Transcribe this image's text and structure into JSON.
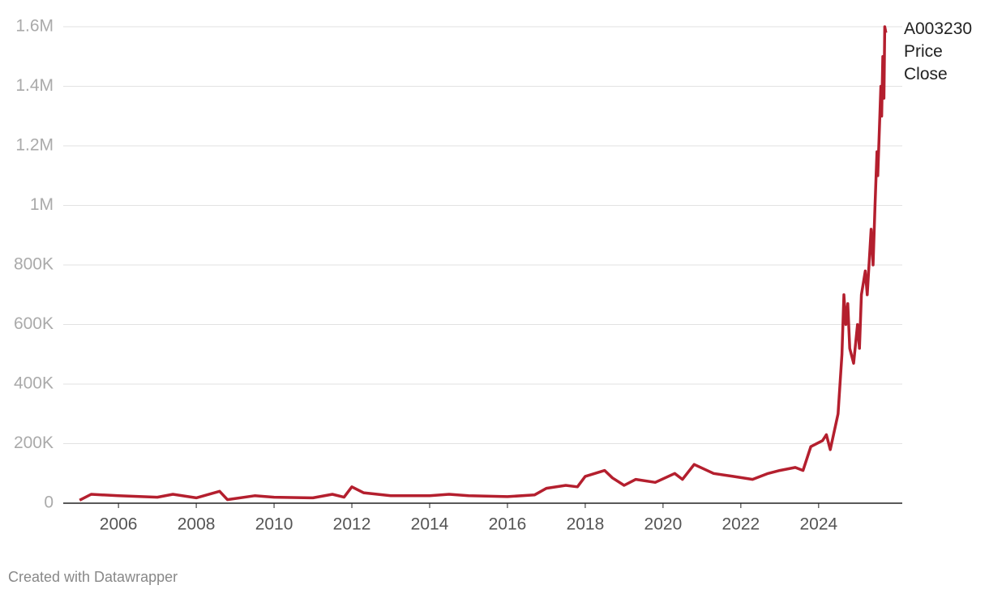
{
  "chart_data": {
    "type": "line",
    "credit": "Created with Datawrapper",
    "x": [
      2005.0,
      2005.3,
      2006.0,
      2007.0,
      2007.4,
      2008.0,
      2008.6,
      2008.8,
      2009.5,
      2010.0,
      2011.0,
      2011.5,
      2011.8,
      2012.0,
      2012.3,
      2013.0,
      2014.0,
      2014.5,
      2015.0,
      2016.0,
      2016.7,
      2017.0,
      2017.5,
      2017.8,
      2018.0,
      2018.5,
      2018.7,
      2019.0,
      2019.3,
      2019.8,
      2020.3,
      2020.5,
      2020.8,
      2021.3,
      2021.8,
      2022.3,
      2022.7,
      2023.0,
      2023.4,
      2023.6,
      2023.8,
      2024.1,
      2024.2,
      2024.3,
      2024.5,
      2024.6,
      2024.65,
      2024.7,
      2024.75,
      2024.8,
      2024.9,
      2025.0,
      2025.05,
      2025.1,
      2025.2,
      2025.25,
      2025.35,
      2025.4,
      2025.45,
      2025.5,
      2025.52,
      2025.6,
      2025.62,
      2025.65,
      2025.68,
      2025.7,
      2025.73
    ],
    "series": [
      {
        "name": "A003230 Price Close",
        "color": "#b41f2e",
        "values": [
          10000,
          30000,
          25000,
          20000,
          30000,
          18000,
          40000,
          12000,
          25000,
          20000,
          18000,
          30000,
          20000,
          55000,
          35000,
          25000,
          25000,
          30000,
          25000,
          22000,
          28000,
          50000,
          60000,
          55000,
          90000,
          110000,
          85000,
          60000,
          80000,
          70000,
          100000,
          80000,
          130000,
          100000,
          90000,
          80000,
          100000,
          110000,
          120000,
          110000,
          190000,
          210000,
          230000,
          180000,
          300000,
          500000,
          700000,
          600000,
          670000,
          520000,
          470000,
          600000,
          520000,
          700000,
          780000,
          700000,
          920000,
          800000,
          1000000,
          1180000,
          1100000,
          1400000,
          1300000,
          1500000,
          1360000,
          1600000,
          1580000
        ]
      }
    ],
    "xlim": [
      2004.58,
      2026.15
    ],
    "xticks": [
      2006,
      2008,
      2010,
      2012,
      2014,
      2016,
      2018,
      2020,
      2022,
      2024
    ],
    "ylim": [
      0,
      1600000
    ],
    "yticks": [
      0,
      {
        "value": 200000,
        "label": "200K"
      },
      {
        "value": 400000,
        "label": "400K"
      },
      {
        "value": 600000,
        "label": "600K"
      },
      {
        "value": 800000,
        "label": "800K"
      },
      {
        "value": 1000000,
        "label": "1M"
      },
      {
        "value": 1200000,
        "label": "1.2M"
      },
      {
        "value": 1400000,
        "label": "1.4M"
      },
      {
        "value": 1600000,
        "label": "1.6M"
      }
    ],
    "grid": true
  }
}
